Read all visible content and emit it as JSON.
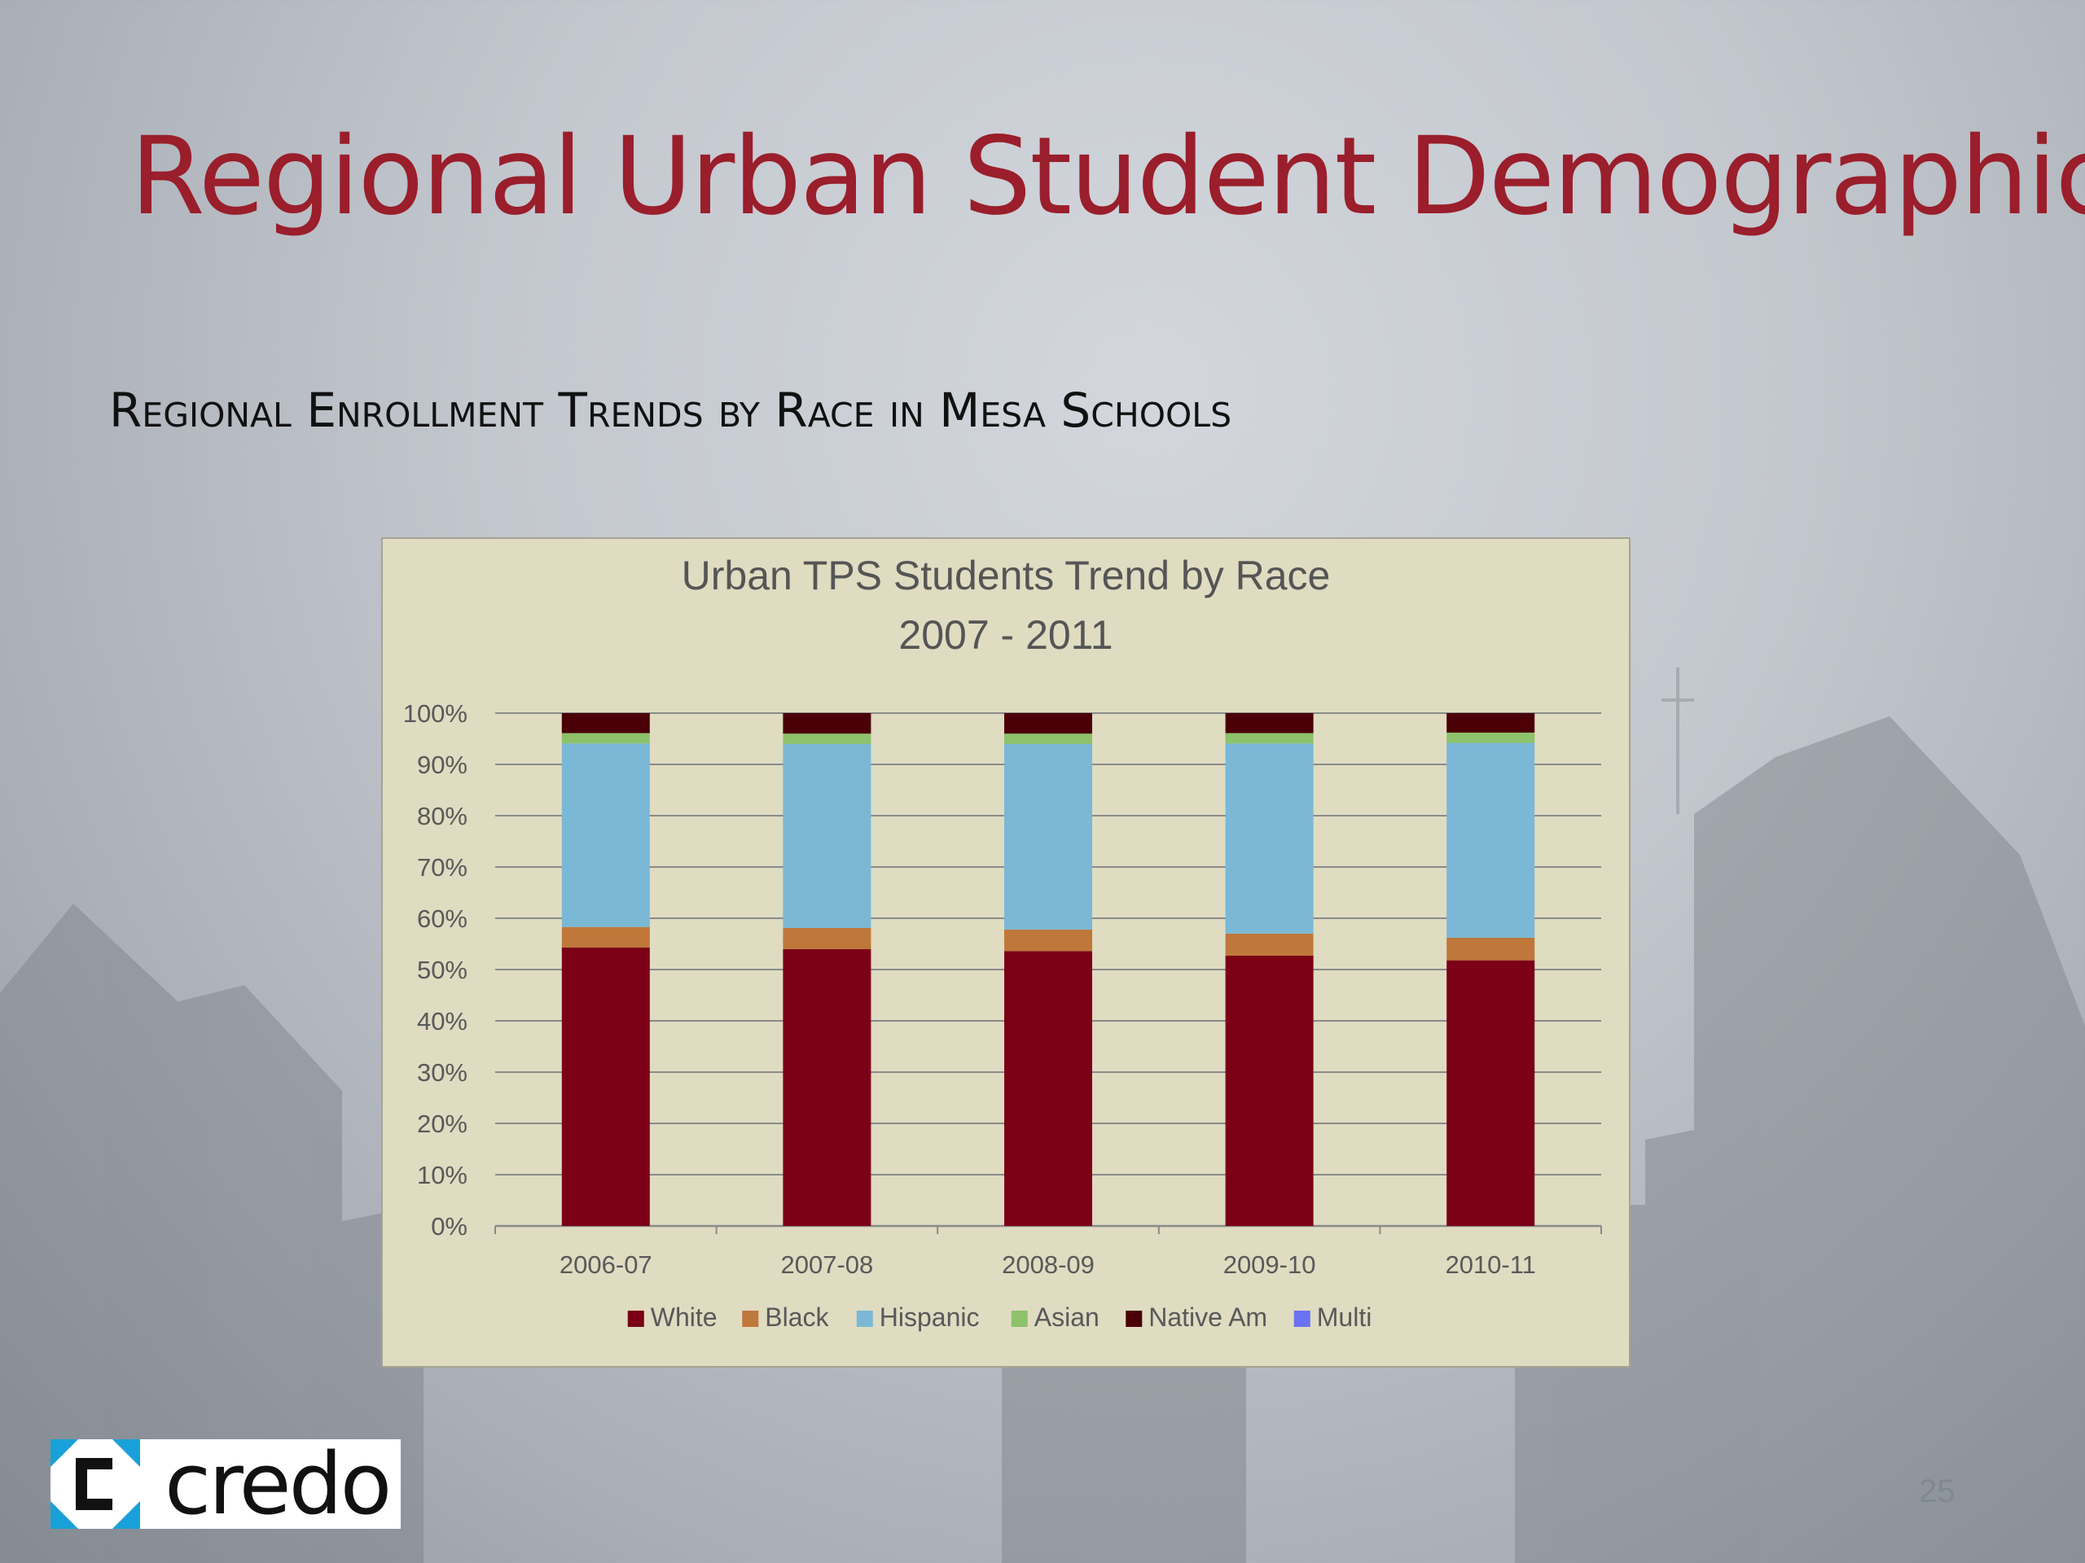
{
  "slide": {
    "title": "Regional Urban Student Demographics",
    "subtitle": "Regional Enrollment Trends by Race in Mesa Schools",
    "logo_text": "credo",
    "page_number": "25"
  },
  "colors": {
    "title": "#9a1e2b",
    "chart_background": "#dfdcc2",
    "White": "#7b0016",
    "Black": "#c0773a",
    "Hispanic": "#7ab8d6",
    "Asian": "#8dc16a",
    "Native Am": "#4a0006",
    "Multi": "#6a72f2",
    "logo_accent": "#1aa0d8"
  },
  "chart_data": {
    "type": "bar",
    "stacked": true,
    "title_lines": [
      "Urban TPS Students Trend by Race",
      "2007 - 2011"
    ],
    "categories": [
      "2006-07",
      "2007-08",
      "2008-09",
      "2009-10",
      "2010-11"
    ],
    "y_ticks": [
      "0%",
      "10%",
      "20%",
      "30%",
      "40%",
      "50%",
      "60%",
      "70%",
      "80%",
      "90%",
      "100%"
    ],
    "ylim": [
      0,
      100
    ],
    "grid": true,
    "legend_position": "bottom",
    "series": [
      {
        "name": "White",
        "values": [
          54.3,
          54.0,
          53.6,
          52.7,
          51.8
        ]
      },
      {
        "name": "Black",
        "values": [
          4.0,
          4.1,
          4.2,
          4.3,
          4.4
        ]
      },
      {
        "name": "Hispanic",
        "values": [
          35.8,
          35.9,
          36.2,
          37.1,
          38.0
        ]
      },
      {
        "name": "Asian",
        "values": [
          2.0,
          2.0,
          2.0,
          2.0,
          2.0
        ]
      },
      {
        "name": "Native Am",
        "values": [
          3.9,
          4.0,
          4.0,
          3.9,
          3.8
        ]
      },
      {
        "name": "Multi",
        "values": [
          0,
          0,
          0,
          0,
          0
        ]
      }
    ]
  }
}
